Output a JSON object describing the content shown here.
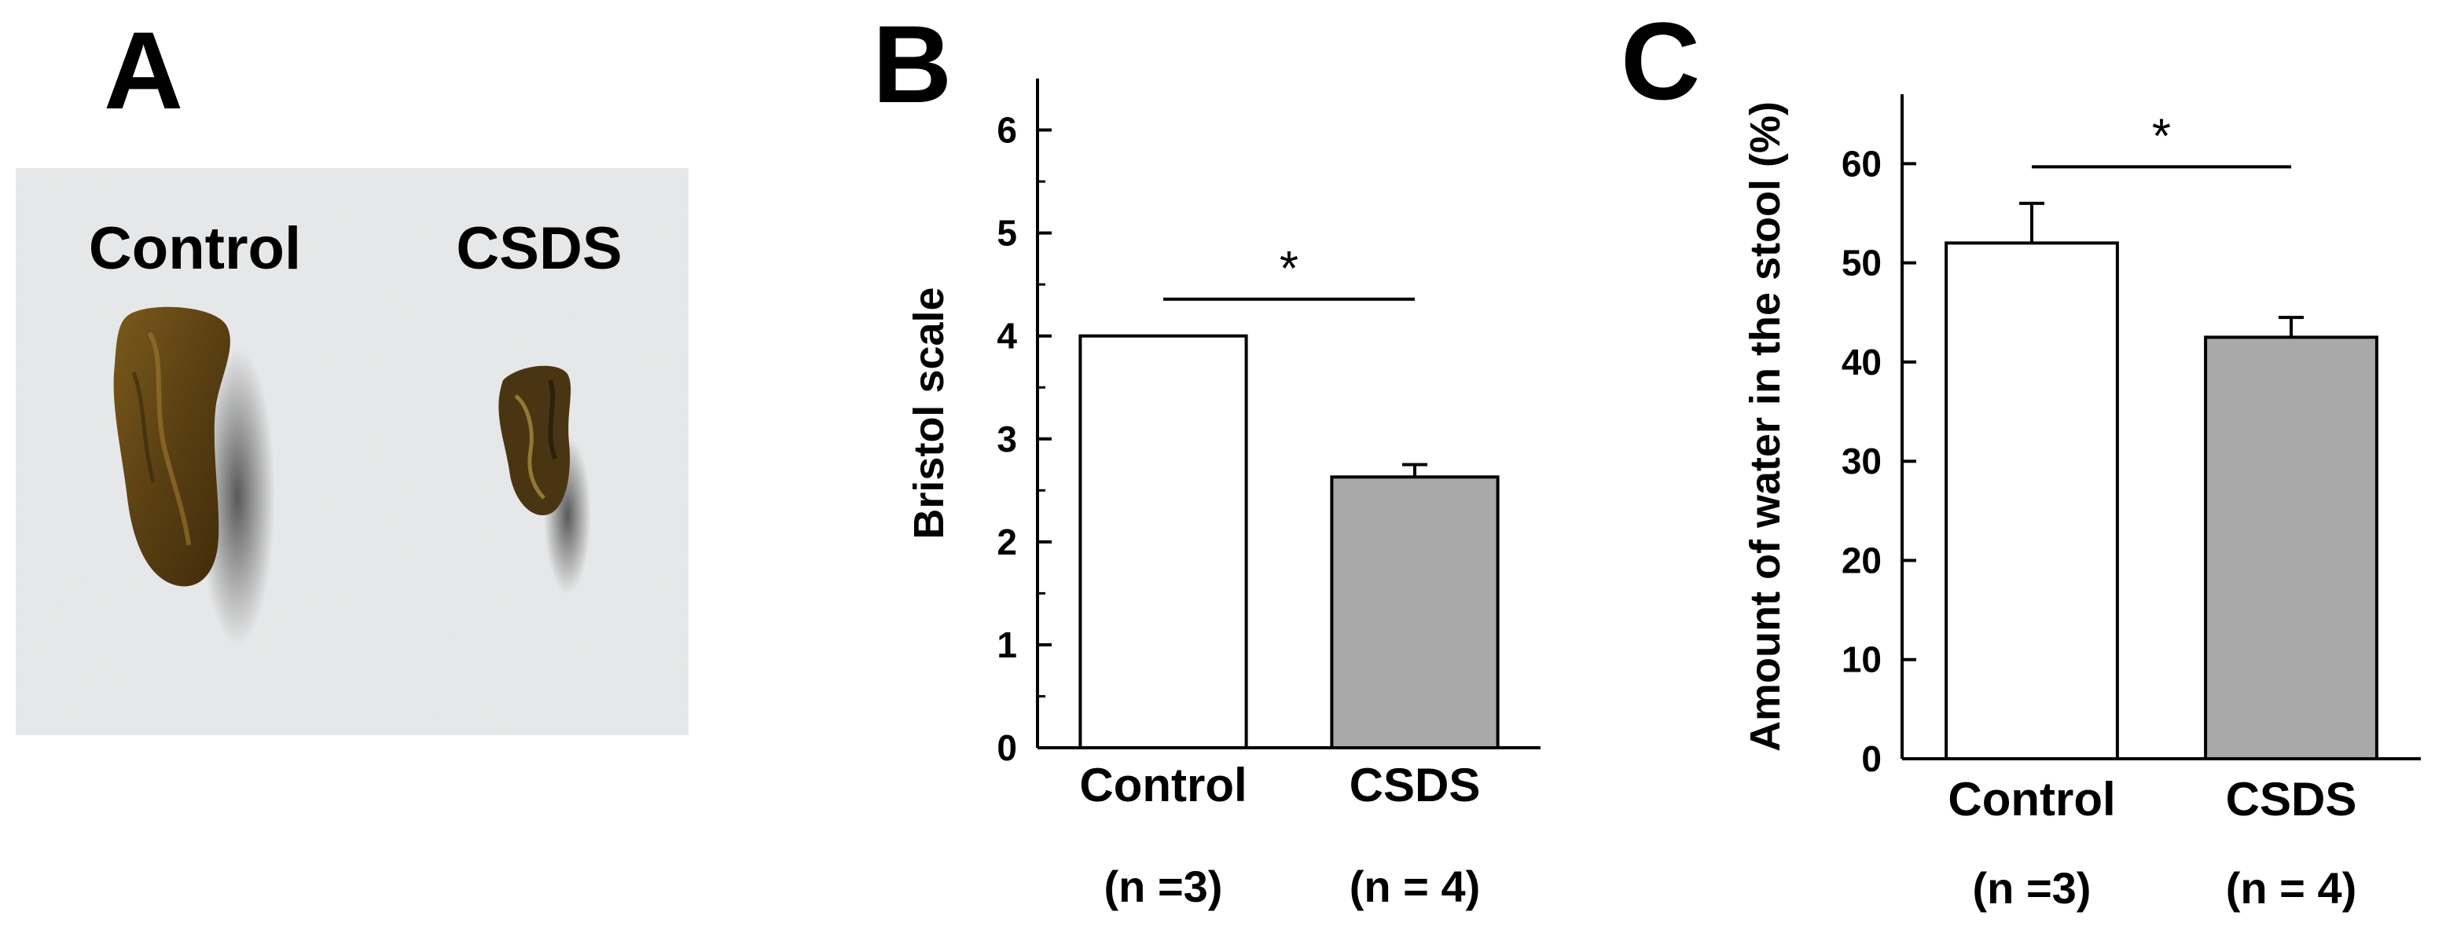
{
  "panels": {
    "a": "A",
    "b": "B",
    "c": "C"
  },
  "photo": {
    "label_control": "Control",
    "label_csds": "CSDS",
    "background_color": "#e4e5e6",
    "stool_color": "#5a3f12"
  },
  "chart_data": [
    {
      "id": "bristol",
      "type": "bar",
      "title": "",
      "xlabel": "",
      "ylabel": "Bristol scale",
      "ylim": [
        0,
        6.5
      ],
      "yticks": [
        0,
        1,
        2,
        3,
        4,
        5,
        6
      ],
      "minor_step": 0.5,
      "categories": [
        "Control",
        "CSDS"
      ],
      "sample_sizes": [
        "(n =3)",
        "(n = 4)"
      ],
      "values": [
        4.0,
        2.63
      ],
      "errors": [
        0,
        0.12
      ],
      "fills": [
        "#ffffff",
        "#a9a9a9"
      ],
      "significance": "*"
    },
    {
      "id": "water",
      "type": "bar",
      "title": "",
      "xlabel": "",
      "ylabel": "Amount of water in the stool (%)",
      "ylim": [
        0,
        67
      ],
      "yticks": [
        0,
        10,
        20,
        30,
        40,
        50,
        60
      ],
      "minor_step": 0,
      "categories": [
        "Control",
        "CSDS"
      ],
      "sample_sizes": [
        "(n =3)",
        "(n = 4)"
      ],
      "values": [
        52.0,
        42.5
      ],
      "errors": [
        4.0,
        2.0
      ],
      "fills": [
        "#ffffff",
        "#a9a9a9"
      ],
      "significance": "*"
    }
  ]
}
